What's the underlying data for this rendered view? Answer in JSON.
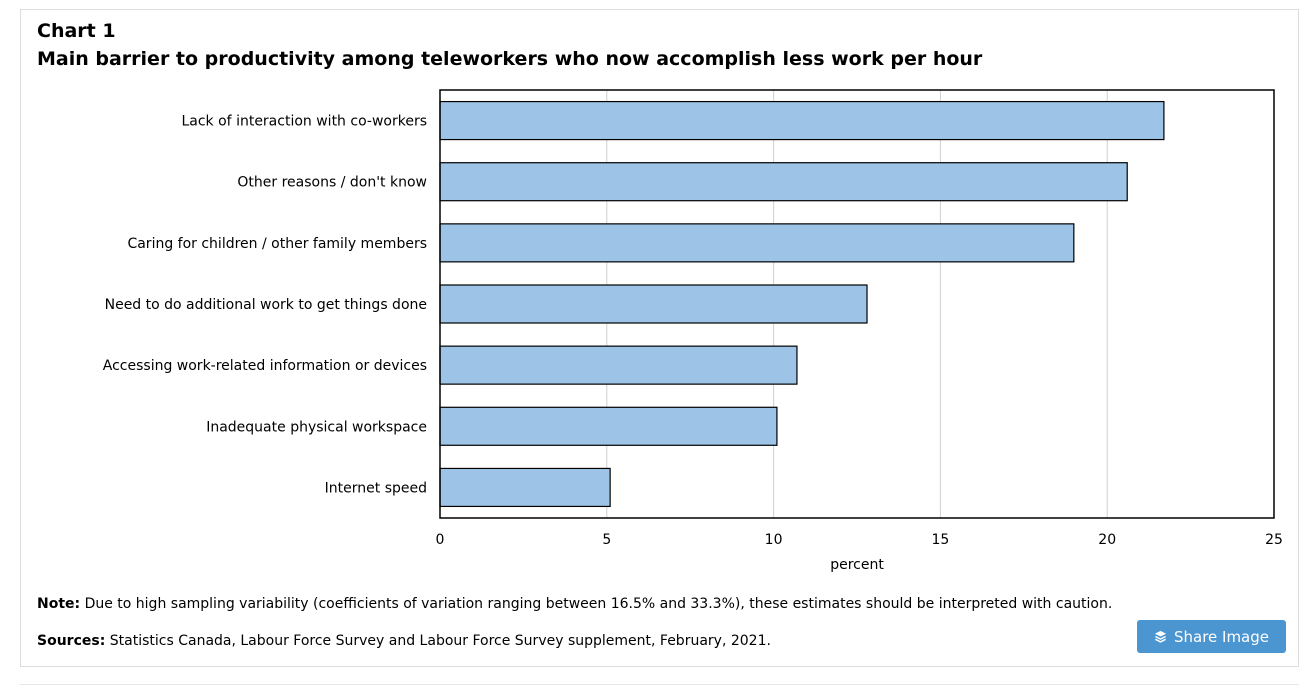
{
  "header": {
    "chart_number": "Chart 1",
    "title": "Main barrier to productivity among teleworkers who now accomplish less work per hour"
  },
  "chart_data": {
    "type": "bar",
    "orientation": "horizontal",
    "categories": [
      "Lack of interaction with co-workers",
      "Other reasons / don't know",
      "Caring for children / other family members",
      "Need to do additional work to get things done",
      "Accessing work-related information or devices",
      "Inadequate physical workspace",
      "Internet speed"
    ],
    "values": [
      21.7,
      20.6,
      19.0,
      12.8,
      10.7,
      10.1,
      5.1
    ],
    "xlabel": "percent",
    "ylabel": "",
    "xlim": [
      0,
      25
    ],
    "xticks": [
      "0",
      "5",
      "10",
      "15",
      "20",
      "25"
    ],
    "grid": true,
    "bar_color": "#9dc3e6",
    "bar_border_color": "#000000"
  },
  "footer": {
    "note_label": "Note:",
    "note_text": " Due to high sampling variability (coefficients of variation ranging between 16.5% and 33.3%), these estimates should be interpreted with caution.",
    "sources_label": "Sources:",
    "sources_text": " Statistics Canada, Labour Force Survey and Labour Force Survey supplement, February, 2021."
  },
  "share_button": {
    "label": "Share Image",
    "icon": "layers-icon",
    "color": "#4b95d0"
  }
}
